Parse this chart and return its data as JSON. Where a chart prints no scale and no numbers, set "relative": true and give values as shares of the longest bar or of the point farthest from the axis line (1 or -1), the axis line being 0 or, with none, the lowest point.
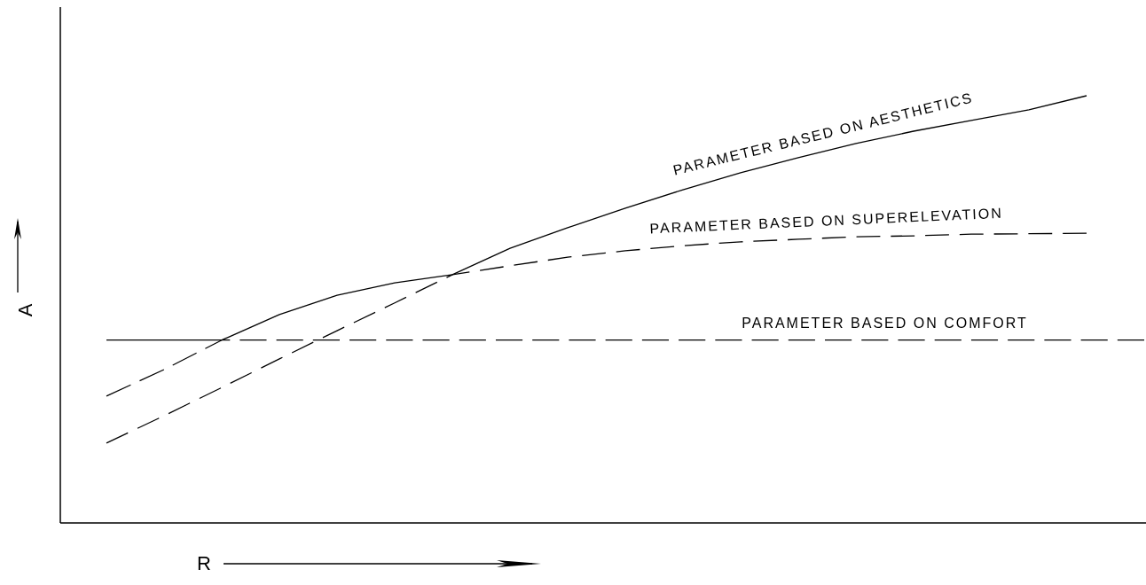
{
  "chart_data": {
    "type": "line",
    "relative": true,
    "xlabel": "R",
    "ylabel": "A",
    "marker": "none",
    "categories": [
      null,
      null,
      null,
      null,
      null,
      null,
      null,
      null,
      null,
      null,
      null,
      null,
      null,
      null,
      null,
      null,
      null,
      null,
      null
    ],
    "series": [
      {
        "name": "PARAMETER BASED ON AESTHETICS",
        "color": "#000000",
        "line_style": "solid",
        "values": [
          0.428,
          0.428,
          0.428,
          0.488,
          0.533,
          0.562,
          0.581,
          0.643,
          0.691,
          0.737,
          0.78,
          0.82,
          0.855,
          0.888,
          0.917,
          0.942,
          0.967,
          1,
          null
        ]
      },
      {
        "name": "PARAMETER BASED ON SUPERELEVATION",
        "color": "#000000",
        "line_style": "dashed",
        "values": [
          0.187,
          0.251,
          0.317,
          0.384,
          0.45,
          0.515,
          0.581,
          0.602,
          0.622,
          0.637,
          0.649,
          0.658,
          0.664,
          0.67,
          0.672,
          0.676,
          0.677,
          0.678,
          null
        ]
      },
      {
        "name": "PARAMETER BASED ON COMFORT",
        "color": "#000000",
        "line_style": "dashed",
        "values": [
          0.297,
          0.359,
          0.428,
          0.428,
          0.428,
          0.428,
          0.428,
          0.428,
          0.428,
          0.428,
          0.428,
          0.428,
          0.428,
          0.428,
          0.428,
          0.428,
          0.428,
          0.428,
          0.428
        ]
      }
    ]
  }
}
